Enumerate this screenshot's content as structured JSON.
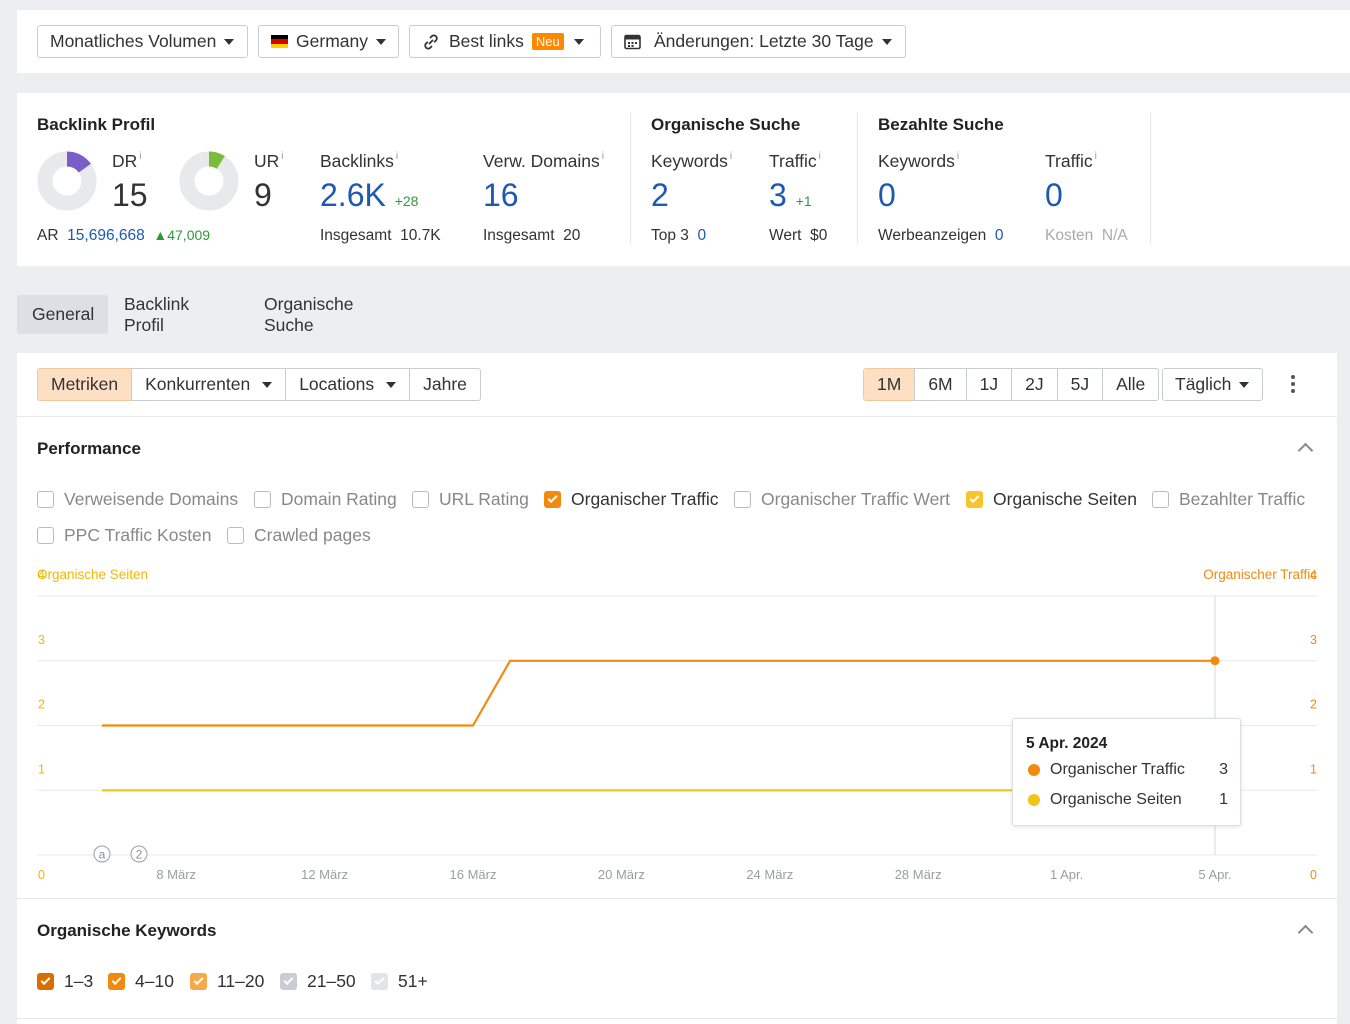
{
  "topbar": {
    "volume_label": "Monatliches Volumen",
    "country_label": "Germany",
    "links_label": "Best links",
    "links_badge": "Neu",
    "changes_label": "Änderungen: Letzte 30 Tage"
  },
  "metrics": {
    "backlink_profile_title": "Backlink Profil",
    "dr_label": "DR",
    "dr_value": "15",
    "dr_fraction": 0.15,
    "ur_label": "UR",
    "ur_value": "9",
    "ur_fraction": 0.09,
    "ar_label": "AR",
    "ar_value": "15,696,668",
    "ar_delta": "▲47,009",
    "backlinks_label": "Backlinks",
    "backlinks_value": "2.6K",
    "backlinks_delta": "+28",
    "backlinks_total_label": "Insgesamt",
    "backlinks_total": "10.7K",
    "refdomains_label": "Verw. Domains",
    "refdomains_value": "16",
    "refdomains_total_label": "Insgesamt",
    "refdomains_total": "20",
    "organic_title": "Organische Suche",
    "org_keywords_label": "Keywords",
    "org_keywords_value": "2",
    "org_top3_label": "Top 3",
    "org_top3_value": "0",
    "org_traffic_label": "Traffic",
    "org_traffic_value": "3",
    "org_traffic_delta": "+1",
    "org_value_label": "Wert",
    "org_value": "$0",
    "paid_title": "Bezahlte Suche",
    "paid_keywords_label": "Keywords",
    "paid_keywords_value": "0",
    "paid_ads_label": "Werbeanzeigen",
    "paid_ads_value": "0",
    "paid_traffic_label": "Traffic",
    "paid_traffic_value": "0",
    "paid_cost_label": "Kosten",
    "paid_cost_value": "N/A",
    "info_glyph": "i"
  },
  "tabs": [
    "General",
    "Backlink Profil",
    "Organische Suche"
  ],
  "toolbar": {
    "metrics": "Metriken",
    "competitors": "Konkurrenten",
    "locations": "Locations",
    "years": "Jahre",
    "ranges": [
      "1M",
      "6M",
      "1J",
      "2J",
      "5J",
      "Alle"
    ],
    "interval": "Täglich"
  },
  "performance": {
    "title": "Performance",
    "checkboxes": [
      {
        "label": "Verweisende Domains",
        "checked": false
      },
      {
        "label": "Domain Rating",
        "checked": false
      },
      {
        "label": "URL Rating",
        "checked": false
      },
      {
        "label": "Organischer Traffic",
        "checked": true
      },
      {
        "label": "Organischer Traffic Wert",
        "checked": false
      },
      {
        "label": "Organische Seiten",
        "checked": true
      },
      {
        "label": "Bezahlter Traffic",
        "checked": false
      },
      {
        "label": "PPC Traffic Kosten",
        "checked": false
      },
      {
        "label": "Crawled pages",
        "checked": false
      }
    ]
  },
  "chart_data": {
    "type": "line",
    "left_axis_label": "Organische Seiten",
    "right_axis_label": "Organischer Traffic",
    "ylim": [
      0,
      4
    ],
    "y_ticks": [
      "0",
      "1",
      "2",
      "3",
      "4"
    ],
    "x_tick_labels": [
      "8 März",
      "12 März",
      "16 März",
      "20 März",
      "24 März",
      "28 März",
      "1 Apr.",
      "5 Apr."
    ],
    "annotations": [
      "a",
      "2"
    ],
    "series": [
      {
        "name": "Organischer Traffic",
        "color": "#f28a0f",
        "points": [
          [
            "6 März",
            2
          ],
          [
            "16 März",
            2
          ],
          [
            "17 März",
            3
          ],
          [
            "5 Apr.",
            3
          ]
        ]
      },
      {
        "name": "Organische Seiten",
        "color": "#f2c318",
        "points": [
          [
            "6 März",
            1
          ],
          [
            "5 Apr.",
            1
          ]
        ]
      }
    ],
    "tooltip": {
      "date": "5 Apr. 2024",
      "rows": [
        {
          "name": "Organischer Traffic",
          "value": "3",
          "color": "#f28a0f"
        },
        {
          "name": "Organische Seiten",
          "value": "1",
          "color": "#f2c318"
        }
      ]
    }
  },
  "keywords": {
    "title": "Organische Keywords",
    "buckets": [
      {
        "label": "1–3",
        "color": "dorange"
      },
      {
        "label": "4–10",
        "color": "orange"
      },
      {
        "label": "11–20",
        "color": "lorange"
      },
      {
        "label": "21–50",
        "color": "gray"
      },
      {
        "label": "51+",
        "color": "lgray"
      }
    ]
  }
}
